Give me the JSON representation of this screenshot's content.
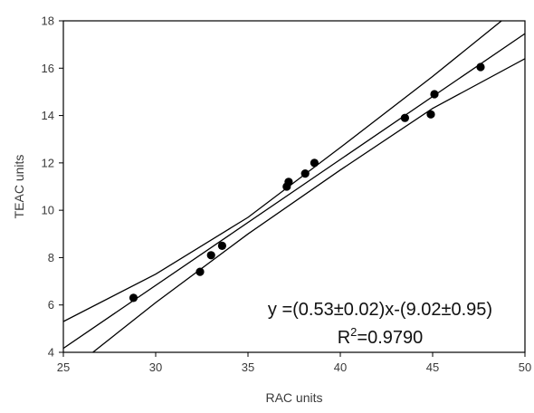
{
  "chart_data": {
    "type": "scatter",
    "xlabel": "RAC units",
    "ylabel": "TEAC units",
    "xlim": [
      25,
      50
    ],
    "ylim": [
      4,
      18
    ],
    "x_ticks": [
      25,
      30,
      35,
      40,
      45,
      50
    ],
    "y_ticks": [
      4,
      6,
      8,
      10,
      12,
      14,
      16,
      18
    ],
    "grid": false,
    "points": [
      {
        "x": 28.8,
        "y": 6.3
      },
      {
        "x": 32.4,
        "y": 7.4
      },
      {
        "x": 33.0,
        "y": 8.1
      },
      {
        "x": 33.6,
        "y": 8.5
      },
      {
        "x": 37.1,
        "y": 11.0
      },
      {
        "x": 37.2,
        "y": 11.2
      },
      {
        "x": 38.1,
        "y": 11.55
      },
      {
        "x": 38.6,
        "y": 12.0
      },
      {
        "x": 43.5,
        "y": 13.9
      },
      {
        "x": 44.9,
        "y": 14.05
      },
      {
        "x": 45.1,
        "y": 14.9
      },
      {
        "x": 47.6,
        "y": 16.05
      }
    ],
    "lines": [
      {
        "role": "regression",
        "x": [
          25,
          50
        ],
        "y": [
          4.17,
          17.46
        ]
      },
      {
        "role": "upper-confidence",
        "x": [
          25,
          30,
          35,
          40,
          45,
          50
        ],
        "y": [
          5.3,
          7.3,
          9.7,
          12.65,
          15.65,
          18.8
        ]
      },
      {
        "role": "lower-confidence",
        "x": [
          26.6,
          30,
          35,
          40,
          45,
          50
        ],
        "y": [
          4.0,
          6.1,
          9.0,
          11.7,
          14.3,
          16.4
        ]
      }
    ],
    "annotations": {
      "equation": "y =(0.53±0.02)x-(9.02±0.95)",
      "r2_base": "R",
      "r2_sup": "2",
      "r2_value": "=0.9790"
    },
    "marker_color": "#000000",
    "line_color": "#000000"
  }
}
